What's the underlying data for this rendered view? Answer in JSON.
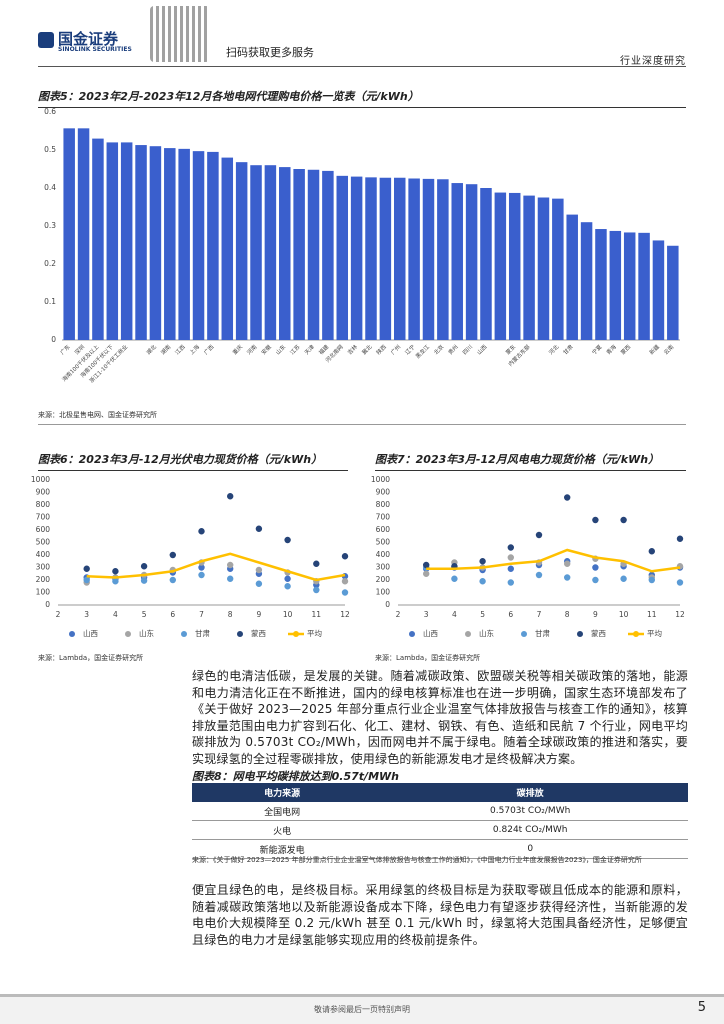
{
  "header": {
    "brand": "国金证券",
    "brand_en": "SINOLINK SECURITIES",
    "qr_text": "扫码获取更多服务",
    "report_type": "行业深度研究"
  },
  "chart_data": [
    {
      "type": "bar",
      "title": "图表5：2023年2月-2023年12月各地电网代理购电价格一览表（元/kWh）",
      "color": "#3a5fcd",
      "categories": [
        "广东",
        "深圳",
        "海南100千伏及以上",
        "海南100千伏以下",
        "浙江1-10千伏工商业",
        null,
        "湖北",
        "湖南",
        "江西",
        "上海",
        "广西",
        null,
        "重庆",
        "河南",
        "安徽",
        "山东",
        "江苏",
        "天津",
        "福建",
        "河北南网",
        "吉林",
        "冀北",
        "陕西",
        "广州",
        "辽宁",
        "黑龙江",
        "北京",
        "贵州",
        "四川",
        "山西",
        null,
        "蒙东",
        "内蒙古东部",
        null,
        "河北",
        "甘肃",
        null,
        "宁夏",
        "青海",
        "蒙西",
        null,
        "新疆",
        "云南"
      ],
      "values": [
        0.557,
        0.557,
        0.53,
        0.52,
        0.52,
        0.513,
        0.51,
        0.505,
        0.503,
        0.497,
        0.495,
        0.48,
        0.468,
        0.46,
        0.46,
        0.455,
        0.45,
        0.448,
        0.445,
        0.432,
        0.43,
        0.428,
        0.427,
        0.427,
        0.425,
        0.424,
        0.423,
        0.413,
        0.41,
        0.4,
        0.388,
        0.387,
        0.38,
        0.375,
        0.372,
        0.33,
        0.31,
        0.292,
        0.287,
        0.283,
        0.282,
        0.262,
        0.248
      ],
      "ylim": [
        0,
        0.6
      ],
      "yticks": [
        0,
        0.1,
        0.2,
        0.3,
        0.4,
        0.5,
        0.6
      ],
      "grid": false,
      "source": "来源：北极星售电网、国金证券研究所"
    },
    {
      "type": "scatter",
      "title": "图表6：2023年3月-12月光伏电力现货价格（元/kWh）",
      "x": [
        3,
        4,
        5,
        6,
        7,
        8,
        9,
        10,
        11,
        12
      ],
      "xlim": [
        2,
        12
      ],
      "xticks": [
        2,
        3,
        4,
        5,
        6,
        7,
        8,
        9,
        10,
        11,
        12
      ],
      "ylim": [
        0,
        1000
      ],
      "yticks": [
        0,
        100,
        200,
        300,
        400,
        500,
        600,
        700,
        800,
        900,
        1000
      ],
      "grid": false,
      "legend": "bottom",
      "series": [
        {
          "name": "山西",
          "type": "scatter",
          "color": "#4472c4",
          "values": [
            220,
            210,
            220,
            260,
            300,
            290,
            250,
            210,
            160,
            230
          ]
        },
        {
          "name": "山东",
          "type": "scatter",
          "color": "#a5a5a5",
          "values": [
            180,
            220,
            240,
            280,
            340,
            320,
            280,
            260,
            190,
            190
          ]
        },
        {
          "name": "甘肃",
          "type": "scatter",
          "color": "#5b9bd5",
          "values": [
            200,
            190,
            195,
            200,
            240,
            210,
            170,
            150,
            120,
            100
          ]
        },
        {
          "name": "蒙西",
          "type": "scatter",
          "color": "#264478",
          "values": [
            290,
            270,
            310,
            400,
            590,
            870,
            610,
            520,
            330,
            390
          ]
        },
        {
          "name": "平均",
          "type": "line",
          "color": "#ffc000",
          "values": [
            230,
            220,
            240,
            270,
            350,
            410,
            340,
            270,
            200,
            240
          ]
        }
      ],
      "source": "来源：Lambda，国金证券研究所"
    },
    {
      "type": "scatter",
      "title": "图表7：2023年3月-12月风电电力现货价格（元/kWh）",
      "x": [
        3,
        4,
        5,
        6,
        7,
        8,
        9,
        10,
        11,
        12
      ],
      "xlim": [
        2,
        12
      ],
      "xticks": [
        2,
        3,
        4,
        5,
        6,
        7,
        8,
        9,
        10,
        11,
        12
      ],
      "ylim": [
        0,
        1000
      ],
      "yticks": [
        0,
        100,
        200,
        300,
        400,
        500,
        600,
        700,
        800,
        900,
        1000
      ],
      "grid": false,
      "legend": "bottom",
      "series": [
        {
          "name": "山西",
          "type": "scatter",
          "color": "#4472c4",
          "values": [
            290,
            300,
            280,
            290,
            320,
            350,
            300,
            310,
            240,
            300
          ]
        },
        {
          "name": "山东",
          "type": "scatter",
          "color": "#a5a5a5",
          "values": [
            250,
            340,
            300,
            380,
            340,
            330,
            370,
            330,
            220,
            310
          ]
        },
        {
          "name": "甘肃",
          "type": "scatter",
          "color": "#5b9bd5",
          "values": [
            300,
            210,
            190,
            180,
            240,
            220,
            200,
            210,
            200,
            180
          ]
        },
        {
          "name": "蒙西",
          "type": "scatter",
          "color": "#264478",
          "values": [
            320,
            310,
            350,
            460,
            560,
            860,
            680,
            680,
            430,
            530
          ]
        },
        {
          "name": "平均",
          "type": "line",
          "color": "#ffc000",
          "values": [
            290,
            290,
            300,
            330,
            350,
            440,
            380,
            350,
            270,
            300
          ]
        }
      ],
      "source": "来源：Lambda，国金证券研究所"
    }
  ],
  "body": {
    "paragraphs": [
      "绿色的电清洁低碳，是发展的关键。随着减碳政策、欧盟碳关税等相关碳政策的落地，能源和电力清洁化正在不断推进，国内的绿电核算标准也在进一步明确，国家生态环境部发布了《关于做好 2023—2025 年部分重点行业企业温室气体排放报告与核查工作的通知》，核算排放量范围由电力扩容到石化、化工、建材、钢铁、有色、造纸和民航 7 个行业，网电平均碳排放为 0.5703t CO₂/MWh，因而网电并不属于绿电。随着全球碳政策的推进和落实，要实现绿氢的全过程零碳排放，使用绿色的新能源发电才是终极解决方案。",
      "便宜且绿色的电，是终极目标。采用绿氢的终极目标是为获取零碳且低成本的能源和原料，随着减碳政策落地以及新能源设备成本下降，绿色电力有望逐步获得经济性，当新能源的发电电价大规模降至 0.2 元/kWh 甚至 0.1 元/kWh 时，绿氢将大范围具备经济性，足够便宜且绿色的电力才是绿氢能够实现应用的终极前提条件。"
    ]
  },
  "table": {
    "title": "图表8：网电平均碳排放达到0.57t/MWh",
    "columns": [
      "电力来源",
      "碳排放"
    ],
    "rows": [
      [
        "全国电网",
        "0.5703t CO₂/MWh"
      ],
      [
        "火电",
        "0.824t CO₂/MWh"
      ],
      [
        "新能源发电",
        "0"
      ]
    ],
    "source": "来源：《关于做好 2023—2025 年部分重点行业企业温室气体排放报告与核查工作的通知》，《中国电力行业年度发展报告2023》，国金证券研究所"
  },
  "footer": {
    "disclaimer": "敬请参阅最后一页特别声明",
    "page": "5"
  }
}
